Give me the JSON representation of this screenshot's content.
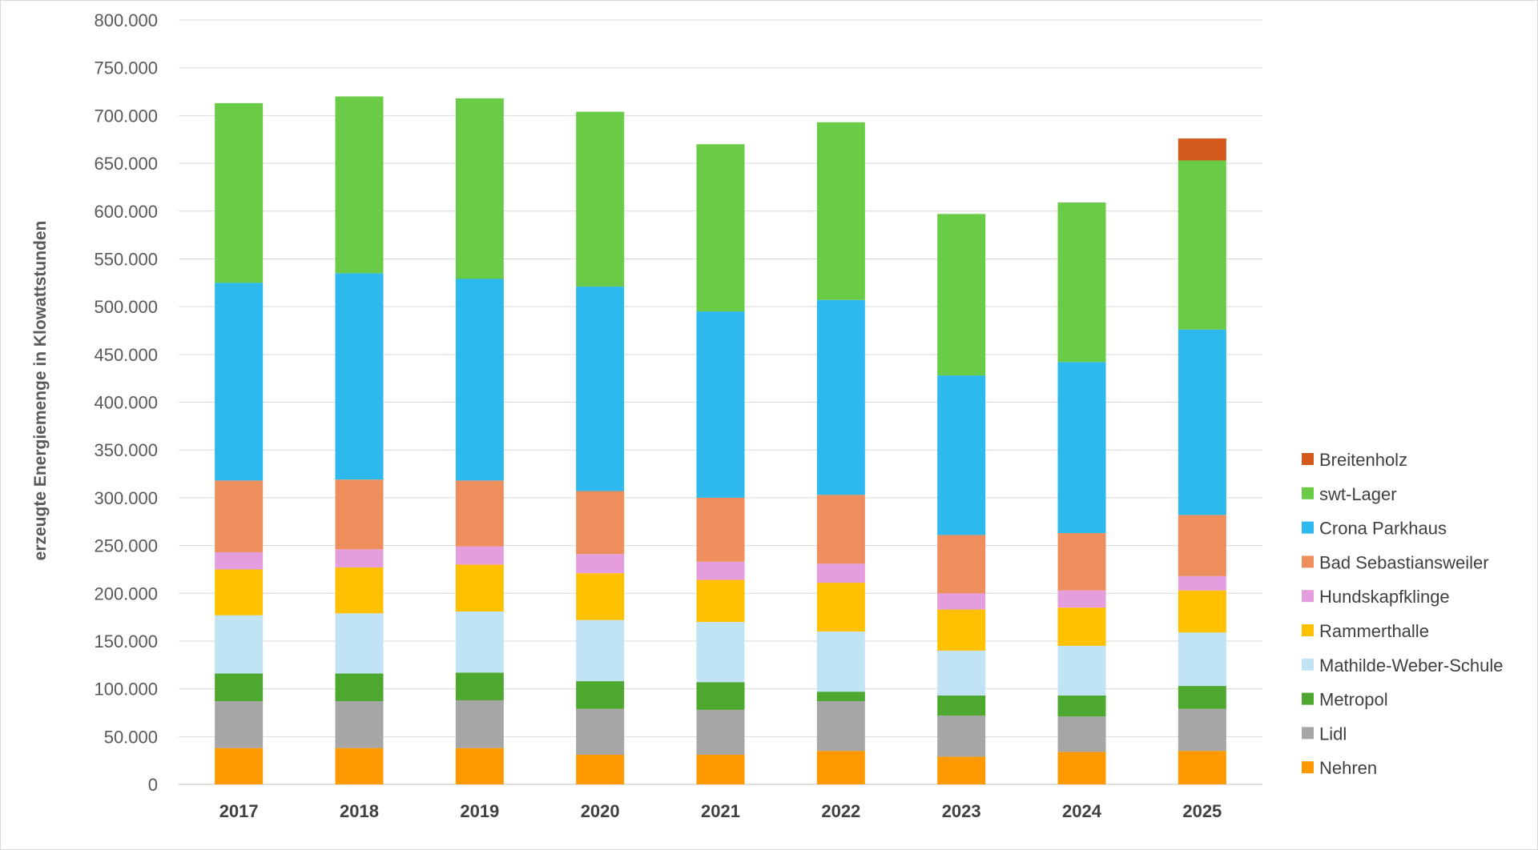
{
  "chart_data": {
    "type": "bar",
    "stacked": true,
    "title": "",
    "xlabel": "",
    "ylabel": "erzeugte Energiemenge in Klowattstunden",
    "ylim": [
      0,
      800000
    ],
    "yticks": [
      0,
      50000,
      100000,
      150000,
      200000,
      250000,
      300000,
      350000,
      400000,
      450000,
      500000,
      550000,
      600000,
      650000,
      700000,
      750000,
      800000
    ],
    "ytick_labels": [
      "0",
      "50.000",
      "100.000",
      "150.000",
      "200.000",
      "250.000",
      "300.000",
      "350.000",
      "400.000",
      "450.000",
      "500.000",
      "550.000",
      "600.000",
      "650.000",
      "700.000",
      "750.000",
      "800.000"
    ],
    "grid": true,
    "legend_position": "right",
    "categories": [
      "2017",
      "2018",
      "2019",
      "2020",
      "2021",
      "2022",
      "2023",
      "2024",
      "2025"
    ],
    "series": [
      {
        "name": "Nehren",
        "color": "#FF9900",
        "values": [
          38000,
          38000,
          38000,
          31000,
          31000,
          35000,
          29000,
          34000,
          35000
        ]
      },
      {
        "name": "Lidl",
        "color": "#A6A6A6",
        "values": [
          49000,
          49000,
          50000,
          48000,
          47000,
          52000,
          43000,
          37000,
          44000
        ]
      },
      {
        "name": "Metropol",
        "color": "#4EA72E",
        "values": [
          29000,
          29000,
          29000,
          29000,
          29000,
          10000,
          21000,
          22000,
          24000
        ]
      },
      {
        "name": "Mathilde-Weber-Schule",
        "color": "#C1E4F5",
        "values": [
          61000,
          63000,
          64000,
          64000,
          63000,
          63000,
          47000,
          52000,
          56000
        ]
      },
      {
        "name": "Rammerthalle",
        "color": "#FFC000",
        "values": [
          48000,
          48000,
          49000,
          49000,
          44000,
          51000,
          43000,
          40000,
          44000
        ]
      },
      {
        "name": "Hundskapfklinge",
        "color": "#E59EDD",
        "values": [
          18000,
          19000,
          19000,
          20000,
          19000,
          20000,
          17000,
          18000,
          15000
        ]
      },
      {
        "name": "Bad Sebastiansweiler",
        "color": "#ED8E5C",
        "values": [
          75000,
          73000,
          69000,
          66000,
          67000,
          72000,
          61000,
          60000,
          64000
        ]
      },
      {
        "name": "Crona Parkhaus",
        "color": "#2DB9EE",
        "values": [
          207000,
          216000,
          211000,
          214000,
          195000,
          204000,
          167000,
          179000,
          194000
        ]
      },
      {
        "name": "swt-Lager",
        "color": "#6ACC46",
        "values": [
          188000,
          185000,
          189000,
          183000,
          175000,
          186000,
          169000,
          167000,
          177000
        ]
      },
      {
        "name": "Breitenholz",
        "color": "#D4591C",
        "values": [
          0,
          0,
          0,
          0,
          0,
          0,
          0,
          0,
          23000
        ]
      }
    ]
  }
}
